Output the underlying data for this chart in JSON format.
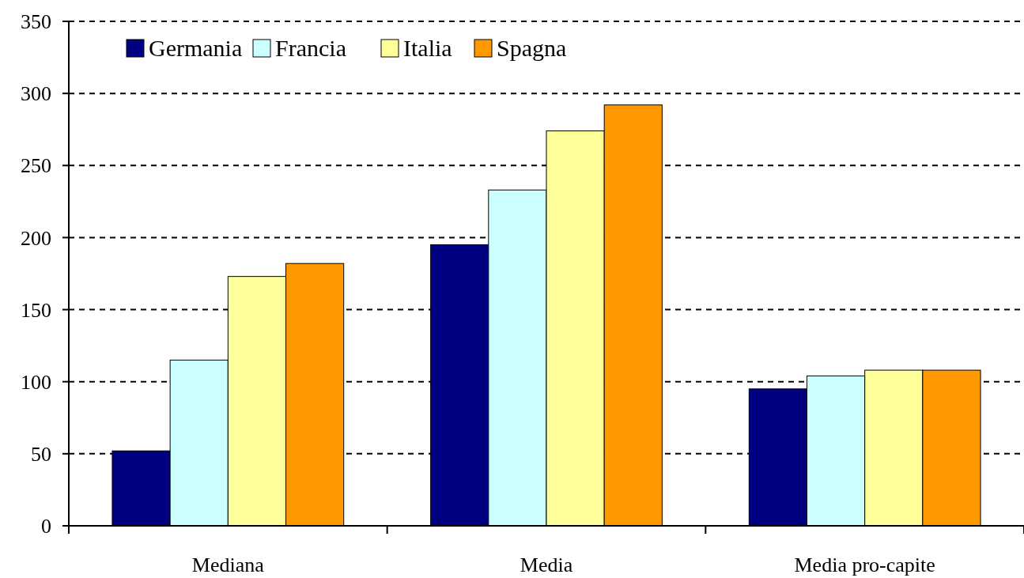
{
  "chart_data": {
    "type": "bar",
    "categories": [
      "Mediana",
      "Media",
      "Media pro-capite"
    ],
    "series": [
      {
        "name": "Germania",
        "color": "#000080",
        "values": [
          52,
          195,
          95
        ]
      },
      {
        "name": "Francia",
        "color": "#ccffff",
        "values": [
          115,
          233,
          104
        ]
      },
      {
        "name": "Italia",
        "color": "#ffff99",
        "values": [
          173,
          274,
          108
        ]
      },
      {
        "name": "Spagna",
        "color": "#ff9900",
        "values": [
          182,
          292,
          108
        ]
      }
    ],
    "ylim": [
      0,
      350
    ],
    "yticks": [
      0,
      50,
      100,
      150,
      200,
      250,
      300,
      350
    ],
    "grid": "y",
    "legend": "top left"
  }
}
